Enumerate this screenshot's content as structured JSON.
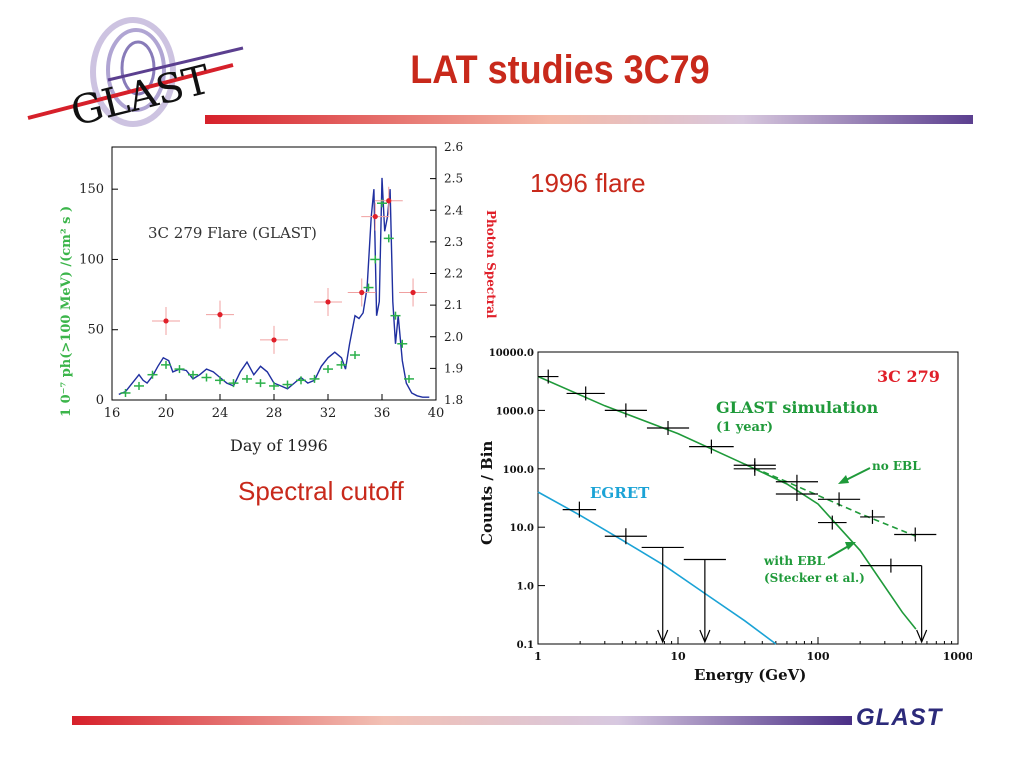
{
  "slide": {
    "title": "LAT studies 3C79",
    "note_flare": "1996 flare",
    "note_cutoff": "Spectral cutoff",
    "logo_text": "GLAST",
    "footer_logo": "GLAST",
    "colors": {
      "title": "#c8291b",
      "accent_red": "#d6202a",
      "accent_purple": "#5b3f8f"
    }
  },
  "chart_data": [
    {
      "type": "line",
      "inset_text": "3C 279   Flare (GLAST)",
      "xlabel": "Day of 1996",
      "ylabel_left": "1 0⁻⁷  ph(>100 MeV) /(cm² s )",
      "ylabel_right": "Photon   Spectral",
      "xlim": [
        16,
        40
      ],
      "ylim": [
        0,
        180
      ],
      "ylim_right": [
        1.8,
        2.6
      ],
      "x_ticks": [
        "16",
        "20",
        "24",
        "28",
        "32",
        "36",
        "40"
      ],
      "y_ticks": [
        "0",
        "50",
        "100",
        "150"
      ],
      "y_ticks_right": [
        "1.8",
        "1.9",
        "2.0",
        "2.1",
        "2.2",
        "2.3",
        "2.4",
        "2.5",
        "2.6"
      ],
      "series": [
        {
          "color": "#1f2fa0",
          "x": [
            16.5,
            17,
            17.5,
            18,
            18.3,
            18.6,
            19,
            19.4,
            19.8,
            20.2,
            20.5,
            21,
            21.5,
            22,
            22.5,
            23,
            23.5,
            24,
            24.5,
            25,
            25.5,
            26,
            26.5,
            27,
            27.5,
            28,
            28.5,
            29,
            29.5,
            30,
            30.5,
            31,
            31.5,
            32,
            32.5,
            33,
            33.3,
            33.6,
            34,
            34.3,
            34.6,
            34.9,
            35.2,
            35.4,
            35.6,
            35.8,
            36,
            36.2,
            36.4,
            36.6,
            36.8,
            37,
            37.2,
            37.5,
            37.8,
            38.2,
            38.6,
            39,
            39.5
          ],
          "y": [
            4,
            6,
            12,
            18,
            14,
            12,
            17,
            24,
            30,
            28,
            20,
            22,
            21,
            15,
            18,
            22,
            20,
            16,
            12,
            10,
            20,
            27,
            18,
            24,
            20,
            12,
            10,
            8,
            12,
            16,
            12,
            14,
            24,
            30,
            34,
            30,
            22,
            40,
            60,
            58,
            62,
            80,
            130,
            150,
            60,
            70,
            158,
            120,
            130,
            150,
            70,
            40,
            60,
            28,
            12,
            5,
            3,
            2,
            2
          ]
        },
        {
          "color": "#2ab04a",
          "marker": "green-crosses",
          "x": [
            17,
            18,
            19,
            20,
            21,
            22,
            23,
            24,
            25,
            26,
            27,
            28,
            29,
            30,
            31,
            32,
            33,
            34,
            35,
            35.5,
            36,
            36.5,
            37,
            37.5,
            38
          ],
          "y": [
            5,
            10,
            18,
            25,
            22,
            18,
            16,
            14,
            12,
            15,
            12,
            10,
            11,
            14,
            15,
            22,
            25,
            32,
            80,
            100,
            140,
            115,
            60,
            40,
            15
          ]
        },
        {
          "color": "#e0202a",
          "marker": "red-dots",
          "axis": "right",
          "x": [
            20,
            24,
            28,
            32,
            34.5,
            35.5,
            36.5,
            38.3
          ],
          "y": [
            2.05,
            2.07,
            1.99,
            2.11,
            2.14,
            2.38,
            2.43,
            2.14
          ]
        }
      ]
    },
    {
      "type": "line",
      "title": "3C 279",
      "xlabel": "Energy (GeV)",
      "ylabel": "Counts / Bin",
      "x_scale": "log",
      "y_scale": "log",
      "xlim": [
        1,
        1000
      ],
      "ylim": [
        0.1,
        10000
      ],
      "x_ticks": [
        "1",
        "10",
        "100",
        "1000"
      ],
      "y_ticks": [
        "0.1",
        "1.0",
        "10.0",
        "100.0",
        "1000.0",
        "10000.0"
      ],
      "annotations": {
        "glast_label": "GLAST simulation",
        "glast_sub": "(1 year)",
        "no_ebl": "no EBL",
        "with_ebl": "with EBL",
        "with_ebl_sub": "(Stecker et al.)",
        "egret": "EGRET"
      },
      "series": [
        {
          "name": "GLAST simulation",
          "color": "#1f9a3a",
          "x": [
            1,
            3,
            10,
            30,
            60,
            100,
            200,
            400,
            500
          ],
          "y": [
            3800,
            1200,
            400,
            120,
            55,
            25,
            4,
            0.35,
            0.18
          ]
        },
        {
          "name": "no EBL",
          "color": "#1f9a3a",
          "style": "dashed",
          "x": [
            30,
            60,
            100,
            200,
            500
          ],
          "y": [
            120,
            60,
            35,
            17,
            7
          ]
        },
        {
          "name": "EGRET",
          "color": "#1ba3d6",
          "x": [
            1,
            2,
            4,
            8,
            16,
            30,
            50
          ],
          "y": [
            40,
            16,
            6,
            2.2,
            0.7,
            0.25,
            0.1
          ]
        }
      ],
      "glast_points": [
        {
          "x": [
            1,
            1.4
          ],
          "y": 3800
        },
        {
          "x": [
            1.6,
            3
          ],
          "y": 1950
        },
        {
          "x": [
            3,
            6
          ],
          "y": 1000
        },
        {
          "x": [
            6,
            12
          ],
          "y": 500
        },
        {
          "x": [
            12,
            25
          ],
          "y": 240
        },
        {
          "x": [
            25,
            50
          ],
          "y": 115
        },
        {
          "x": [
            25,
            50
          ],
          "y": 100
        },
        {
          "x": [
            50,
            100
          ],
          "y": 60
        },
        {
          "x": [
            50,
            100
          ],
          "y": 37
        },
        {
          "x": [
            100,
            200
          ],
          "y": 30
        },
        {
          "x": [
            100,
            160
          ],
          "y": 12
        },
        {
          "x": [
            200,
            300
          ],
          "y": 15
        },
        {
          "x": [
            200,
            550
          ],
          "y": 2.2
        },
        {
          "x": [
            350,
            700
          ],
          "y": 7.5
        }
      ],
      "egret_points": [
        {
          "x": [
            1.5,
            2.6
          ],
          "y": 20
        },
        {
          "x": [
            3,
            6
          ],
          "y": 7
        },
        {
          "x": [
            5.5,
            11
          ],
          "y": 4.5
        },
        {
          "x": [
            11,
            22
          ],
          "y": 2.8
        }
      ]
    }
  ]
}
